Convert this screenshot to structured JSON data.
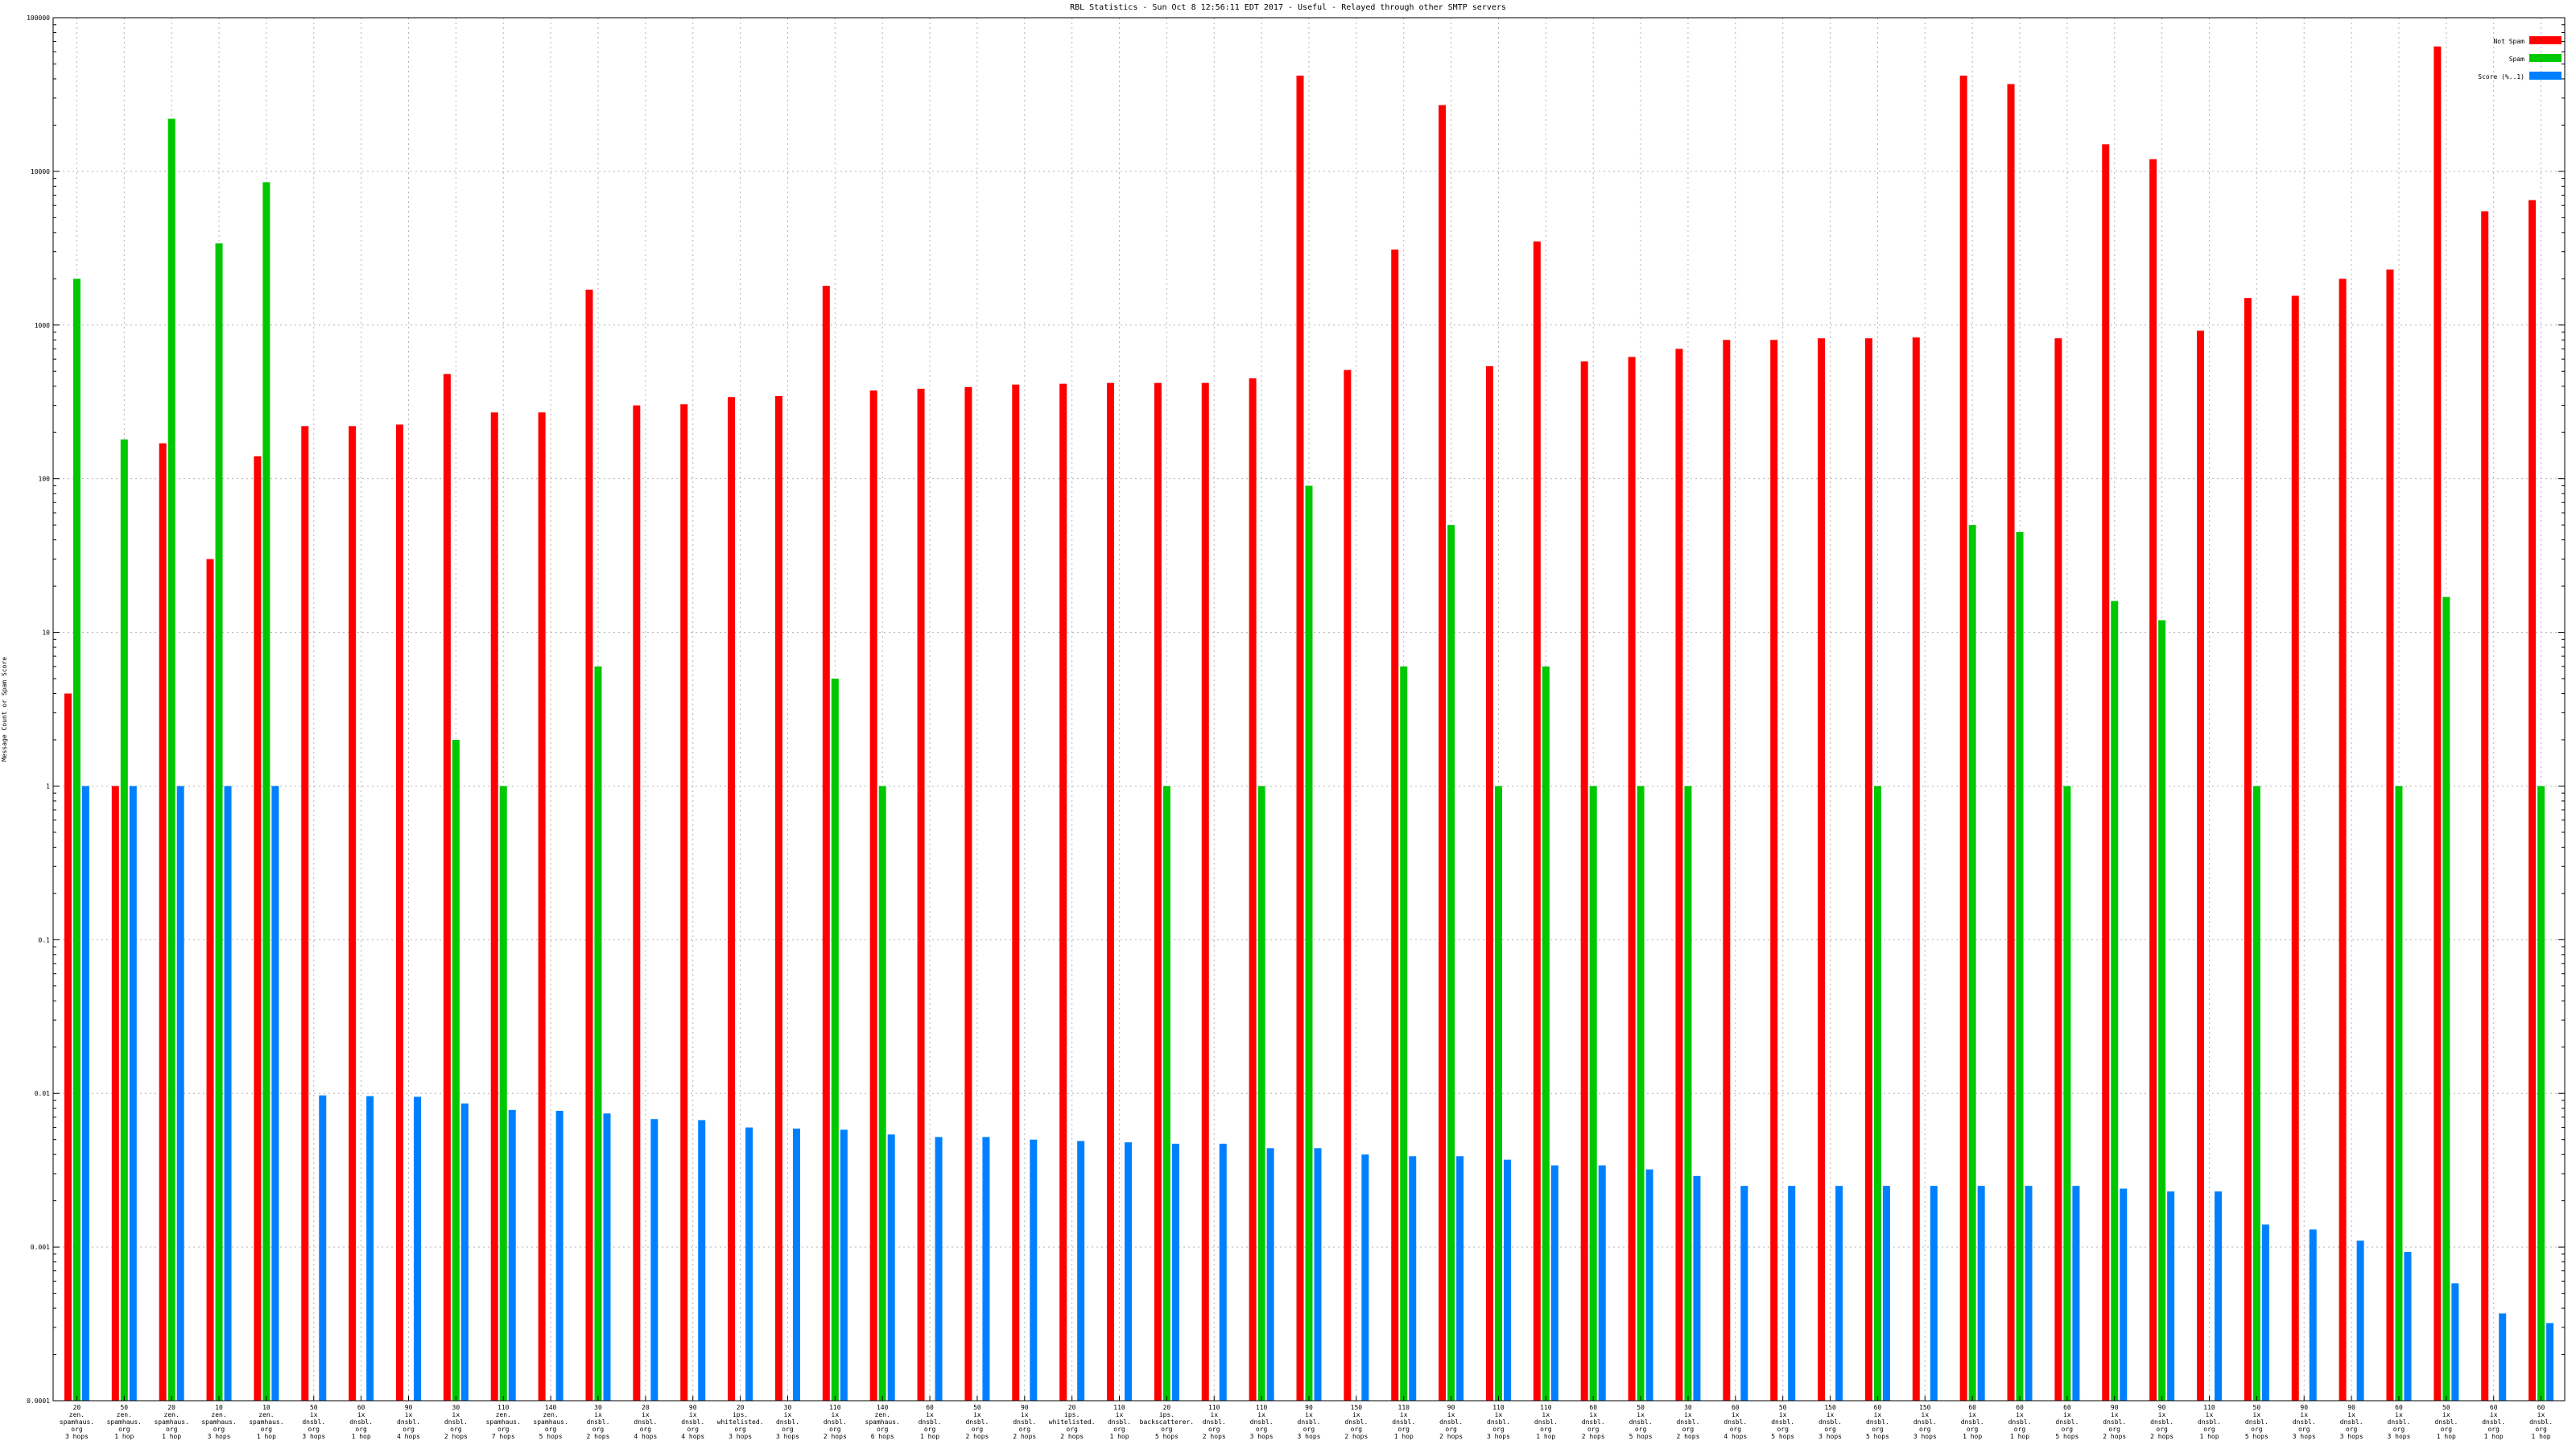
{
  "colors": {
    "background": "#ffffff",
    "axis": "#000000",
    "grid": "#b4b4b4",
    "not_spam": "#ff0000",
    "spam": "#00c800",
    "score": "#0080ff"
  },
  "chart_data": {
    "type": "bar",
    "title": "RBL Statistics - Sun Oct  8 12:56:11 EDT 2017 - Useful - Relayed through other SMTP servers",
    "ylabel": "Message Count or Spam Score",
    "xlabel": "",
    "yscale": "log",
    "ylim": [
      0.0001,
      100000
    ],
    "ytick_labels": [
      "0.0001",
      "0.001",
      "0.01",
      "0.1",
      "1",
      "10",
      "100",
      "1000",
      "10000",
      "100000"
    ],
    "grid": true,
    "legend_position": "top-right",
    "categories": [
      [
        "20",
        "zen.",
        "spamhaus.",
        "org",
        "3 hops"
      ],
      [
        "50",
        "zen.",
        "spamhaus.",
        "org",
        "1 hop"
      ],
      [
        "20",
        "zen.",
        "spamhaus.",
        "org",
        "1 hop"
      ],
      [
        "10",
        "zen.",
        "spamhaus.",
        "org",
        "3 hops"
      ],
      [
        "10",
        "zen.",
        "spamhaus.",
        "org",
        "1 hop"
      ],
      [
        "50",
        "ix",
        "dnsbl.",
        "org",
        "3 hops"
      ],
      [
        "60",
        "ix",
        "dnsbl.",
        "org",
        "1 hop"
      ],
      [
        "90",
        "ix",
        "dnsbl.",
        "org",
        "4 hops"
      ],
      [
        "30",
        "ix",
        "dnsbl.",
        "org",
        "2 hops"
      ],
      [
        "110",
        "zen.",
        "spamhaus.",
        "org",
        "7 hops"
      ],
      [
        "140",
        "zen.",
        "spamhaus.",
        "org",
        "5 hops"
      ],
      [
        "30",
        "ix",
        "dnsbl.",
        "org",
        "2 hops"
      ],
      [
        "20",
        "ix",
        "dnsbl.",
        "org",
        "4 hops"
      ],
      [
        "90",
        "ix",
        "dnsbl.",
        "org",
        "4 hops"
      ],
      [
        "20",
        "ips.",
        "whitelisted.",
        "org",
        "3 hops"
      ],
      [
        "30",
        "ix",
        "dnsbl.",
        "org",
        "3 hops"
      ],
      [
        "110",
        "ix",
        "dnsbl.",
        "org",
        "2 hops"
      ],
      [
        "140",
        "zen.",
        "spamhaus.",
        "org",
        "6 hops"
      ],
      [
        "60",
        "ix",
        "dnsbl.",
        "org",
        "1 hop"
      ],
      [
        "50",
        "ix",
        "dnsbl.",
        "org",
        "2 hops"
      ],
      [
        "90",
        "ix",
        "dnsbl.",
        "org",
        "2 hops"
      ],
      [
        "20",
        "ips.",
        "whitelisted.",
        "org",
        "2 hops"
      ],
      [
        "110",
        "ix",
        "dnsbl.",
        "org",
        "1 hop"
      ],
      [
        "20",
        "ips.",
        "backscatterer.",
        "org",
        "5 hops"
      ],
      [
        "110",
        "ix",
        "dnsbl.",
        "org",
        "2 hops"
      ],
      [
        "110",
        "ix",
        "dnsbl.",
        "org",
        "3 hops"
      ],
      [
        "90",
        "ix",
        "dnsbl.",
        "org",
        "3 hops"
      ],
      [
        "150",
        "ix",
        "dnsbl.",
        "org",
        "2 hops"
      ],
      [
        "110",
        "ix",
        "dnsbl.",
        "org",
        "1 hop"
      ],
      [
        "90",
        "ix",
        "dnsbl.",
        "org",
        "2 hops"
      ],
      [
        "110",
        "ix",
        "dnsbl.",
        "org",
        "3 hops"
      ],
      [
        "110",
        "ix",
        "dnsbl.",
        "org",
        "1 hop"
      ],
      [
        "60",
        "ix",
        "dnsbl.",
        "org",
        "2 hops"
      ],
      [
        "50",
        "ix",
        "dnsbl.",
        "org",
        "5 hops"
      ],
      [
        "30",
        "ix",
        "dnsbl.",
        "org",
        "2 hops"
      ],
      [
        "60",
        "ix",
        "dnsbl.",
        "org",
        "4 hops"
      ],
      [
        "50",
        "ix",
        "dnsbl.",
        "org",
        "5 hops"
      ],
      [
        "150",
        "ix",
        "dnsbl.",
        "org",
        "3 hops"
      ],
      [
        "60",
        "ix",
        "dnsbl.",
        "org",
        "5 hops"
      ],
      [
        "150",
        "ix",
        "dnsbl.",
        "org",
        "3 hops"
      ],
      [
        "60",
        "ix",
        "dnsbl.",
        "org",
        "1 hop"
      ],
      [
        "60",
        "ix",
        "dnsbl.",
        "org",
        "1 hop"
      ],
      [
        "60",
        "ix",
        "dnsbl.",
        "org",
        "5 hops"
      ],
      [
        "90",
        "ix",
        "dnsbl.",
        "org",
        "2 hops"
      ],
      [
        "90",
        "ix",
        "dnsbl.",
        "org",
        "2 hops"
      ],
      [
        "110",
        "ix",
        "dnsbl.",
        "org",
        "1 hop"
      ],
      [
        "50",
        "ix",
        "dnsbl.",
        "org",
        "5 hops"
      ],
      [
        "90",
        "ix",
        "dnsbl.",
        "org",
        "3 hops"
      ],
      [
        "90",
        "ix",
        "dnsbl.",
        "org",
        "3 hops"
      ],
      [
        "60",
        "ix",
        "dnsbl.",
        "org",
        "3 hops"
      ],
      [
        "50",
        "ix",
        "dnsbl.",
        "org",
        "1 hop"
      ],
      [
        "60",
        "ix",
        "dnsbl.",
        "org",
        "1 hop"
      ],
      [
        "60",
        "ix",
        "dnsbl.",
        "org",
        "1 hop"
      ]
    ],
    "series": [
      {
        "name": "Not Spam",
        "color": "#ff0000",
        "values": [
          4,
          1,
          170,
          30,
          140,
          220,
          220,
          225,
          480,
          270,
          270,
          1700,
          300,
          305,
          340,
          345,
          1800,
          375,
          385,
          395,
          410,
          415,
          420,
          420,
          420,
          450,
          42000,
          510,
          3100,
          27000,
          540,
          3500,
          580,
          620,
          700,
          800,
          800,
          820,
          820,
          830,
          42000,
          37000,
          820,
          15000,
          12000,
          920,
          1500,
          1550,
          2000,
          2300,
          65000,
          5500,
          6500
        ]
      },
      {
        "name": "Spam",
        "color": "#00c800",
        "values": [
          2000,
          180,
          22000,
          3400,
          8500,
          0,
          0,
          0,
          2,
          1,
          0,
          6,
          0,
          0,
          0,
          0,
          5,
          1,
          0,
          0,
          0,
          0,
          0,
          1,
          0,
          1,
          90,
          0,
          6,
          50,
          1,
          6,
          1,
          1,
          1,
          0,
          0,
          0,
          1,
          0,
          50,
          45,
          1,
          16,
          12,
          0,
          1,
          0,
          0,
          1,
          17,
          0,
          1
        ]
      },
      {
        "name": "Score (%..1)",
        "color": "#0080ff",
        "values": [
          1,
          1,
          1,
          1,
          1,
          0.0097,
          0.0096,
          0.0095,
          0.0086,
          0.0078,
          0.0077,
          0.0074,
          0.0068,
          0.0067,
          0.006,
          0.0059,
          0.0058,
          0.0054,
          0.0052,
          0.0052,
          0.005,
          0.0049,
          0.0048,
          0.0047,
          0.0047,
          0.0044,
          0.0044,
          0.004,
          0.0039,
          0.0039,
          0.0037,
          0.0034,
          0.0034,
          0.0032,
          0.0029,
          0.0025,
          0.0025,
          0.0025,
          0.0025,
          0.0025,
          0.0025,
          0.0025,
          0.0025,
          0.0024,
          0.0023,
          0.0023,
          0.0014,
          0.0013,
          0.0011,
          0.00093,
          0.00058,
          0.00037,
          0.00032
        ]
      }
    ]
  }
}
